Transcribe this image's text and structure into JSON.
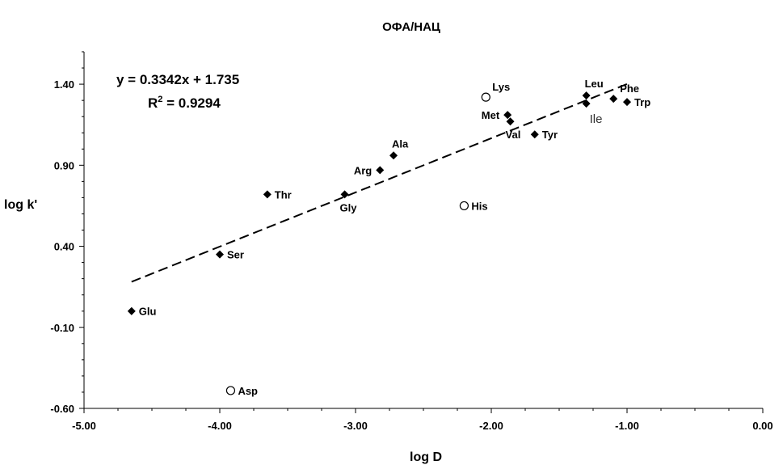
{
  "chart_data": {
    "type": "scatter",
    "title": "ОФА/НАЦ",
    "xlabel": "log D",
    "ylabel": "log k'",
    "xlim": [
      -5.0,
      0.0
    ],
    "ylim": [
      -0.6,
      1.6
    ],
    "xticks": [
      -5.0,
      -4.0,
      -3.0,
      -2.0,
      -1.0,
      0.0
    ],
    "xtick_labels": [
      "-5.00",
      "-4.00",
      "-3.00",
      "-2.00",
      "-1.00",
      "0.00"
    ],
    "yticks": [
      -0.6,
      -0.1,
      0.4,
      0.9,
      1.4
    ],
    "ytick_labels": [
      "-0.60",
      "-0.10",
      "0.40",
      "0.90",
      "1.40"
    ],
    "grid": false,
    "equation": "y = 0.3342x + 1.735",
    "r2_prefix": "R",
    "r2_sup": "2",
    "r2_value": " = 0.9294",
    "trendline": {
      "slope": 0.3342,
      "intercept": 1.735,
      "x_range": [
        -4.65,
        -1.0
      ],
      "style": "dashed"
    },
    "series": [
      {
        "marker": "diamond-filled",
        "points": [
          {
            "label": "Glu",
            "x": -4.65,
            "y": 0.0,
            "anchor": "right"
          },
          {
            "label": "Ser",
            "x": -4.0,
            "y": 0.35,
            "anchor": "right"
          },
          {
            "label": "Thr",
            "x": -3.65,
            "y": 0.72,
            "anchor": "right"
          },
          {
            "label": "Gly",
            "x": -3.08,
            "y": 0.72,
            "anchor": "below"
          },
          {
            "label": "Arg",
            "x": -2.82,
            "y": 0.87,
            "anchor": "left"
          },
          {
            "label": "Ala",
            "x": -2.72,
            "y": 0.96,
            "anchor": "above"
          },
          {
            "label": "Met",
            "x": -1.88,
            "y": 1.21,
            "anchor": "left"
          },
          {
            "label": "Val",
            "x": -1.86,
            "y": 1.17,
            "anchor": "below"
          },
          {
            "label": "Tyr",
            "x": -1.68,
            "y": 1.09,
            "anchor": "right"
          },
          {
            "label": "Leu",
            "x": -1.3,
            "y": 1.33,
            "anchor": "above"
          },
          {
            "label": "Ile",
            "x": -1.3,
            "y": 1.28,
            "anchor": "below-plain"
          },
          {
            "label": "Phe",
            "x": -1.1,
            "y": 1.31,
            "anchor": "above-right"
          },
          {
            "label": "Trp",
            "x": -1.0,
            "y": 1.29,
            "anchor": "right"
          }
        ]
      },
      {
        "marker": "circle-open",
        "points": [
          {
            "label": "Lys",
            "x": -2.04,
            "y": 1.32,
            "anchor": "above-right"
          },
          {
            "label": "His",
            "x": -2.2,
            "y": 0.65,
            "anchor": "right"
          },
          {
            "label": "Asp",
            "x": -3.92,
            "y": -0.49,
            "anchor": "right"
          }
        ]
      }
    ]
  }
}
